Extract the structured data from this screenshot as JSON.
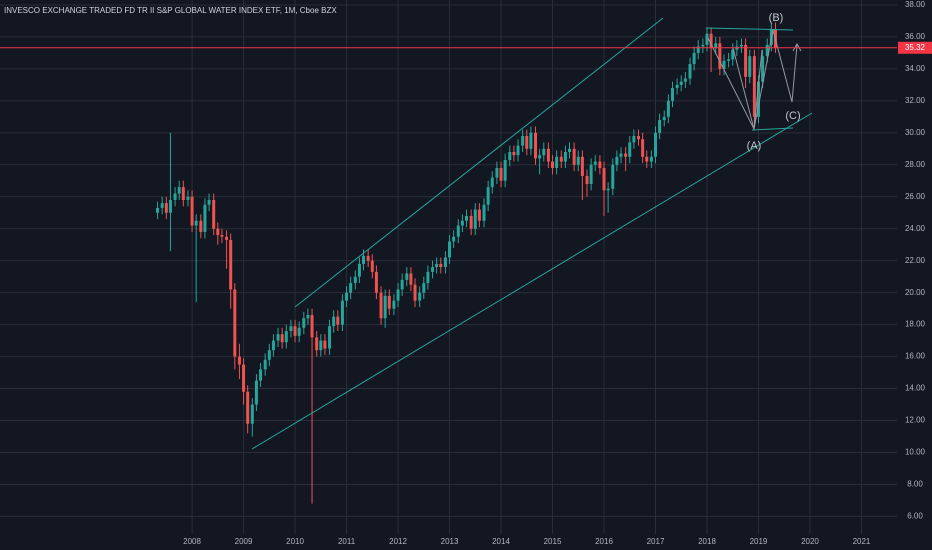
{
  "chart_data": {
    "type": "candlestick",
    "title": "INVESCO EXCHANGE TRADED FD TR II S&P GLOBAL WATER INDEX ETF, 1M, Cboe BZX",
    "up_color": "#26a69a",
    "down_color": "#ef5350",
    "price_line_color": "#f23645",
    "grid": true,
    "xlim": [
      2004.27,
      2021.69
    ],
    "ylim": [
      4.9,
      38.31
    ],
    "xticks": [
      2008,
      2009,
      2010,
      2011,
      2012,
      2013,
      2014,
      2015,
      2016,
      2017,
      2018,
      2019,
      2020,
      2021
    ],
    "yticks": [
      {
        "value": 6,
        "label": "6.00"
      },
      {
        "value": 8,
        "label": "8.00"
      },
      {
        "value": 10,
        "label": "10.00"
      },
      {
        "value": 12,
        "label": "12.00"
      },
      {
        "value": 14,
        "label": "14.00"
      },
      {
        "value": 16,
        "label": "16.00"
      },
      {
        "value": 18,
        "label": "18.00"
      },
      {
        "value": 20,
        "label": "20.00"
      },
      {
        "value": 22,
        "label": "22.00"
      },
      {
        "value": 24,
        "label": "24.00"
      },
      {
        "value": 26,
        "label": "26.00"
      },
      {
        "value": 28,
        "label": "28.00"
      },
      {
        "value": 30,
        "label": "30.00"
      },
      {
        "value": 32,
        "label": "32.00"
      },
      {
        "value": 34,
        "label": "34.00"
      },
      {
        "value": 36,
        "label": "36.00"
      },
      {
        "value": 38,
        "label": "38.00"
      }
    ],
    "annotations": [
      "(B)",
      "(A)",
      "(C)"
    ],
    "x": [
      2007.33,
      2007.42,
      2007.5,
      2007.58,
      2007.67,
      2007.75,
      2007.83,
      2007.92,
      2008,
      2008.08,
      2008.17,
      2008.25,
      2008.33,
      2008.42,
      2008.5,
      2008.58,
      2008.67,
      2008.75,
      2008.83,
      2008.92,
      2009,
      2009.08,
      2009.17,
      2009.25,
      2009.33,
      2009.42,
      2009.5,
      2009.58,
      2009.67,
      2009.75,
      2009.83,
      2009.92,
      2010,
      2010.08,
      2010.17,
      2010.25,
      2010.33,
      2010.42,
      2010.5,
      2010.58,
      2010.67,
      2010.75,
      2010.83,
      2010.92,
      2011,
      2011.08,
      2011.17,
      2011.25,
      2011.33,
      2011.42,
      2011.5,
      2011.58,
      2011.67,
      2011.75,
      2011.83,
      2011.92,
      2012,
      2012.08,
      2012.17,
      2012.25,
      2012.33,
      2012.42,
      2012.5,
      2012.58,
      2012.67,
      2012.75,
      2012.83,
      2012.92,
      2013,
      2013.08,
      2013.17,
      2013.25,
      2013.33,
      2013.42,
      2013.5,
      2013.58,
      2013.67,
      2013.75,
      2013.83,
      2013.92,
      2014,
      2014.08,
      2014.17,
      2014.25,
      2014.33,
      2014.42,
      2014.5,
      2014.58,
      2014.67,
      2014.75,
      2014.83,
      2014.92,
      2015,
      2015.08,
      2015.17,
      2015.25,
      2015.33,
      2015.42,
      2015.5,
      2015.58,
      2015.67,
      2015.75,
      2015.83,
      2015.92,
      2016,
      2016.08,
      2016.17,
      2016.25,
      2016.33,
      2016.42,
      2016.5,
      2016.58,
      2016.67,
      2016.75,
      2016.83,
      2016.92,
      2017,
      2017.08,
      2017.17,
      2017.25,
      2017.33,
      2017.42,
      2017.5,
      2017.58,
      2017.67,
      2017.75,
      2017.83,
      2017.92,
      2018,
      2018.08,
      2018.17,
      2018.25,
      2018.33,
      2018.42,
      2018.5,
      2018.58,
      2018.67,
      2018.75,
      2018.83,
      2018.92,
      2019,
      2019.08,
      2019.17,
      2019.25,
      2019.33
    ],
    "open": [
      25.0,
      25.3,
      25.6,
      25.0,
      25.8,
      26.2,
      26.6,
      25.8,
      26.0,
      24.2,
      24.5,
      23.8,
      25.5,
      25.8,
      24.0,
      23.6,
      23.5,
      23.3,
      20.2,
      16.0,
      15.5,
      13.8,
      11.8,
      13.0,
      14.5,
      15.2,
      15.8,
      16.4,
      17.0,
      17.4,
      16.9,
      17.6,
      17.9,
      17.3,
      17.8,
      18.4,
      18.6,
      17.2,
      16.4,
      17.0,
      16.5,
      17.9,
      18.5,
      18.0,
      19.5,
      20.0,
      20.6,
      21.0,
      21.8,
      22.3,
      22.0,
      21.3,
      20.0,
      18.4,
      19.8,
      19.0,
      19.5,
      20.2,
      20.8,
      21.2,
      20.5,
      19.5,
      20.0,
      20.6,
      21.3,
      21.6,
      21.8,
      21.6,
      22.2,
      23.2,
      23.5,
      24.2,
      24.5,
      24.8,
      24.0,
      25.2,
      24.5,
      25.5,
      26.6,
      27.2,
      27.8,
      27.0,
      28.3,
      28.8,
      28.6,
      29.2,
      29.8,
      29.0,
      30.0,
      28.4,
      28.6,
      29.0,
      28.2,
      27.8,
      28.5,
      28.2,
      28.8,
      29.0,
      28.0,
      28.5,
      27.3,
      26.8,
      28.0,
      28.2,
      27.8,
      26.4,
      26.5,
      28.0,
      28.5,
      28.7,
      28.5,
      29.4,
      29.8,
      29.6,
      28.5,
      28.2,
      28.5,
      30.0,
      30.8,
      31.0,
      32.0,
      32.8,
      33.0,
      33.2,
      33.4,
      34.3,
      35.0,
      35.4,
      35.5,
      36.2,
      35.3,
      35.6,
      34.0,
      34.5,
      34.6,
      35.2,
      35.4,
      35.5,
      33.5,
      34.8,
      31.0,
      33.2,
      34.8,
      35.5,
      36.5
    ],
    "high": [
      25.7,
      26.0,
      26.0,
      30.0,
      26.6,
      27.0,
      27.0,
      26.4,
      26.4,
      24.9,
      24.9,
      25.9,
      26.2,
      26.2,
      24.4,
      24.0,
      23.9,
      23.7,
      20.6,
      16.8,
      15.9,
      14.2,
      13.4,
      14.9,
      15.6,
      16.2,
      16.8,
      17.4,
      17.8,
      17.8,
      18.0,
      18.3,
      18.3,
      18.2,
      18.8,
      19.0,
      19.0,
      17.6,
      17.4,
      17.4,
      18.3,
      18.9,
      18.9,
      19.9,
      20.4,
      21.0,
      21.4,
      22.2,
      22.7,
      22.7,
      22.4,
      21.7,
      20.4,
      20.2,
      20.2,
      19.9,
      20.6,
      21.2,
      21.6,
      21.6,
      20.9,
      20.4,
      21.0,
      21.7,
      22.0,
      22.2,
      22.2,
      22.6,
      23.6,
      23.9,
      24.6,
      24.9,
      25.2,
      25.2,
      25.6,
      25.6,
      25.9,
      27.0,
      27.6,
      28.2,
      28.2,
      28.7,
      29.2,
      29.2,
      29.6,
      30.2,
      30.2,
      30.4,
      30.4,
      29.0,
      29.4,
      29.4,
      28.6,
      28.9,
      28.9,
      29.2,
      29.4,
      29.4,
      28.9,
      28.9,
      27.7,
      28.4,
      28.6,
      28.6,
      28.2,
      26.9,
      28.4,
      28.9,
      29.1,
      29.1,
      29.8,
      30.2,
      30.2,
      30.0,
      28.9,
      28.9,
      30.4,
      31.2,
      31.4,
      32.4,
      33.2,
      33.4,
      33.6,
      33.8,
      34.7,
      35.4,
      35.8,
      35.9,
      36.6,
      36.6,
      36.0,
      36.0,
      34.9,
      35.0,
      35.6,
      35.8,
      35.9,
      35.9,
      35.2,
      35.2,
      33.6,
      35.2,
      35.9,
      36.9,
      36.9
    ],
    "low": [
      24.6,
      24.9,
      24.6,
      22.6,
      25.4,
      25.8,
      25.4,
      25.4,
      23.8,
      19.4,
      23.4,
      23.4,
      25.1,
      23.6,
      23.0,
      23.1,
      21.5,
      19.0,
      15.2,
      14.6,
      13.0,
      11.2,
      11.0,
      12.6,
      14.1,
      14.8,
      15.4,
      16.0,
      16.6,
      16.5,
      16.5,
      17.2,
      16.9,
      16.9,
      17.4,
      18.0,
      6.8,
      16.0,
      16.0,
      16.1,
      16.1,
      17.5,
      17.6,
      17.6,
      19.1,
      19.6,
      20.2,
      20.6,
      21.4,
      21.6,
      20.9,
      19.6,
      18.0,
      17.8,
      18.6,
      18.6,
      19.1,
      19.8,
      20.4,
      20.1,
      19.1,
      19.1,
      19.6,
      20.2,
      20.9,
      21.2,
      21.2,
      21.2,
      21.8,
      22.8,
      23.1,
      23.8,
      24.1,
      23.6,
      23.6,
      24.1,
      24.1,
      25.1,
      26.2,
      26.8,
      26.6,
      26.6,
      27.9,
      28.2,
      28.2,
      28.8,
      28.6,
      28.6,
      28.0,
      27.4,
      28.2,
      27.8,
      27.4,
      27.4,
      27.8,
      27.8,
      28.4,
      27.6,
      27.6,
      25.8,
      26.0,
      26.4,
      27.6,
      27.4,
      24.8,
      25.0,
      26.1,
      27.6,
      28.1,
      27.6,
      28.1,
      29.0,
      29.2,
      28.1,
      27.8,
      27.8,
      28.1,
      29.6,
      30.4,
      30.6,
      31.6,
      32.4,
      32.6,
      32.8,
      33.0,
      33.9,
      34.6,
      35.0,
      35.1,
      33.8,
      34.9,
      33.6,
      33.6,
      34.1,
      34.2,
      34.8,
      35.0,
      32.8,
      33.1,
      30.6,
      30.6,
      32.8,
      34.4,
      35.1,
      35.0
    ],
    "close": [
      25.3,
      25.6,
      25.0,
      25.8,
      26.2,
      26.6,
      25.8,
      26.0,
      24.2,
      24.5,
      23.8,
      25.5,
      25.8,
      24.0,
      23.6,
      23.5,
      23.3,
      20.2,
      16.0,
      15.5,
      13.8,
      11.8,
      13.0,
      14.5,
      15.2,
      15.8,
      16.4,
      17.0,
      17.4,
      16.9,
      17.6,
      17.9,
      17.3,
      17.8,
      18.4,
      18.6,
      17.2,
      16.4,
      17.0,
      16.5,
      17.9,
      18.5,
      18.0,
      19.5,
      20.0,
      20.6,
      21.0,
      21.8,
      22.3,
      22.0,
      21.3,
      20.0,
      18.4,
      19.8,
      19.0,
      19.5,
      20.2,
      20.8,
      21.2,
      20.5,
      19.5,
      20.0,
      20.6,
      21.3,
      21.6,
      21.8,
      21.6,
      22.2,
      23.2,
      23.5,
      24.2,
      24.5,
      24.8,
      24.0,
      25.2,
      24.5,
      25.5,
      26.6,
      27.2,
      27.8,
      27.0,
      28.3,
      28.8,
      28.6,
      29.2,
      29.8,
      29.0,
      30.0,
      28.4,
      28.6,
      29.0,
      28.2,
      27.8,
      28.5,
      28.2,
      28.8,
      29.0,
      28.0,
      28.5,
      27.3,
      26.8,
      28.0,
      28.2,
      27.8,
      26.4,
      26.5,
      28.0,
      28.5,
      28.7,
      28.5,
      29.4,
      29.8,
      29.6,
      28.5,
      28.2,
      28.5,
      30.0,
      30.8,
      31.0,
      32.0,
      32.8,
      33.0,
      33.2,
      33.4,
      34.3,
      35.0,
      35.4,
      35.5,
      36.2,
      35.3,
      35.6,
      34.0,
      34.5,
      34.6,
      35.2,
      35.4,
      35.5,
      33.5,
      34.8,
      31.0,
      33.2,
      34.8,
      35.5,
      36.5,
      35.32
    ]
  }
}
